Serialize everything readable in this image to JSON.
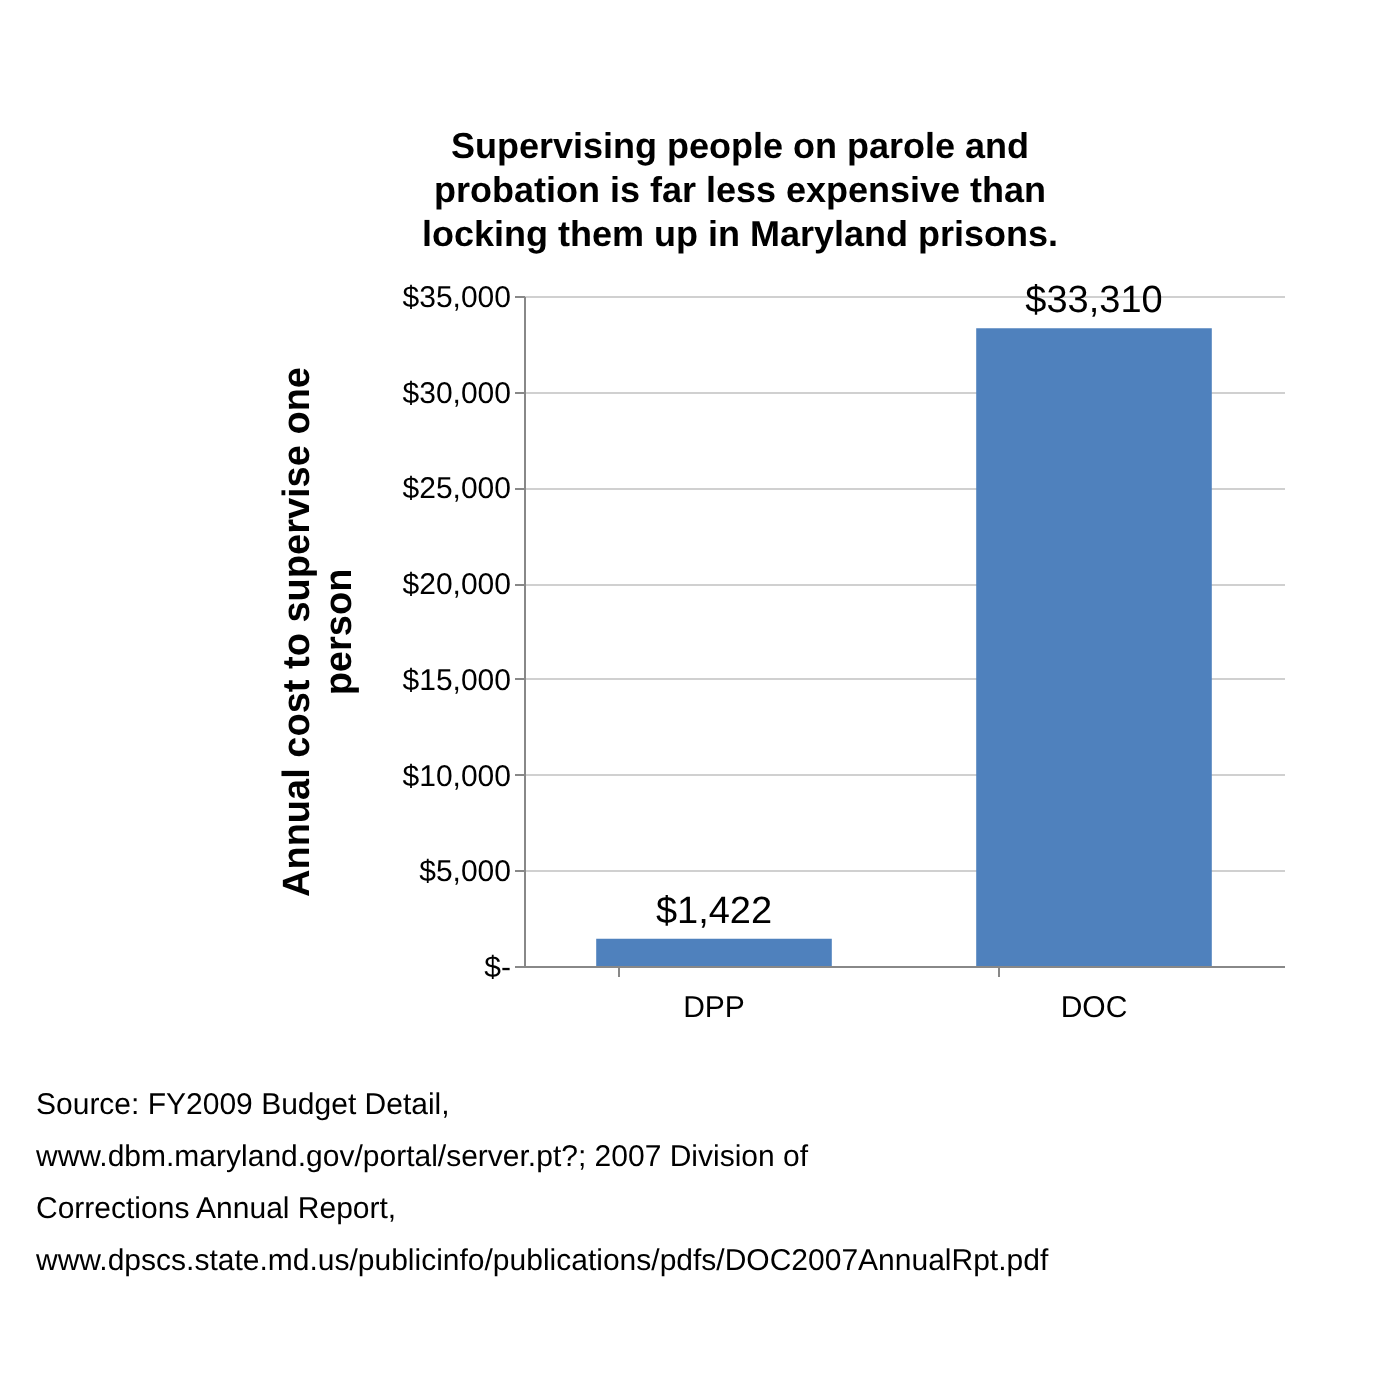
{
  "chart_data": {
    "type": "bar",
    "title": "Supervising people on parole and probation is far less expensive than locking them up in Maryland prisons.",
    "ylabel": "Annual cost to supervise one person",
    "categories": [
      "DPP",
      "DOC"
    ],
    "values": [
      1422,
      33310
    ],
    "value_labels": [
      "$1,422",
      "$33,310"
    ],
    "color": "#4f81bd",
    "ylim": [
      0,
      35000
    ],
    "yticks": [
      {
        "value": 0,
        "label": "$-"
      },
      {
        "value": 5000,
        "label": "$5,000"
      },
      {
        "value": 10000,
        "label": "$10,000"
      },
      {
        "value": 15000,
        "label": "$15,000"
      },
      {
        "value": 20000,
        "label": "$20,000"
      },
      {
        "value": 25000,
        "label": "$25,000"
      },
      {
        "value": 30000,
        "label": "$30,000"
      },
      {
        "value": 35000,
        "label": "$35,000"
      }
    ],
    "grid": "y",
    "annotations": [
      "Source: FY2009 Budget Detail, www.dbm.maryland.gov/portal/server.pt?; 2007 Division of Corrections Annual Report, www.dpscs.state.md.us/publicinfo/publications/pdfs/DOC2007AnnualRpt.pdf"
    ]
  }
}
